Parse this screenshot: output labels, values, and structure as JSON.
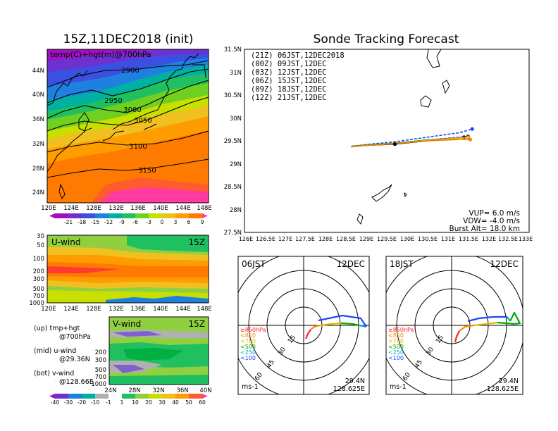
{
  "map_panel": {
    "title": "15Z,11DEC2018 (init)",
    "label": "temp(C)+hgt(m)@700hPa",
    "lat_ticks": [
      "44N",
      "40N",
      "36N",
      "32N",
      "28N",
      "24N"
    ],
    "lon_ticks": [
      "120E",
      "124E",
      "128E",
      "132E",
      "136E",
      "140E",
      "144E",
      "148E"
    ],
    "contour_labels": [
      "2900",
      "2950",
      "3000",
      "3050",
      "3100",
      "3150"
    ],
    "colorbar_labels": [
      "-21",
      "-18",
      "-15",
      "-12",
      "-9",
      "-6",
      "-3",
      "0",
      "3",
      "6",
      "9"
    ]
  },
  "uwind_panel": {
    "title": "U-wind",
    "time": "15Z",
    "p_ticks": [
      "30",
      "50",
      "100",
      "200",
      "300",
      "500",
      "700",
      "1000"
    ],
    "lon_ticks": [
      "120E",
      "124E",
      "128E",
      "132E",
      "136E",
      "140E",
      "144E",
      "148E"
    ]
  },
  "vwind_panel": {
    "title": "V-wind",
    "time": "15Z",
    "p_ticks": [
      "200",
      "300",
      "500",
      "700",
      "1000"
    ],
    "lat_ticks": [
      "24N",
      "28N",
      "32N",
      "36N",
      "40N"
    ]
  },
  "legend_text": {
    "up1": "(up) tmp+hgt",
    "up2": "@700hPa",
    "mid1": "(mid) u-wind",
    "mid2": "@29.36N",
    "bot1": "(bot) v-wind",
    "bot2": "@128.66E"
  },
  "wind_colorbar_labels": [
    "-40",
    "-30",
    "-20",
    "-10",
    "-1",
    "1",
    "10",
    "20",
    "30",
    "40",
    "50",
    "60"
  ],
  "track_panel": {
    "title": "Sonde Tracking Forecast",
    "legend": [
      {
        "label": "(21Z) 06JST,12DEC2018",
        "color": "#000000"
      },
      {
        "label": "(00Z) 09JST,12DEC",
        "color": "#9900cc"
      },
      {
        "label": "(03Z) 12JST,12DEC",
        "color": "#2244ff"
      },
      {
        "label": "(06Z) 15JST,12DEC",
        "color": "#00aa00"
      },
      {
        "label": "(09Z) 18JST,12DEC",
        "color": "#e6b800"
      },
      {
        "label": "(12Z) 21JST,12DEC",
        "color": "#ff7700"
      }
    ],
    "lat_ticks": [
      "31.5N",
      "31N",
      "30.5N",
      "30N",
      "29.5N",
      "29N",
      "28.5N",
      "28N",
      "27.5N"
    ],
    "lon_ticks": [
      "126E",
      "126.5E",
      "127E",
      "127.5E",
      "128E",
      "128.5E",
      "129E",
      "129.5E",
      "130E",
      "130.5E",
      "131E",
      "131.5E",
      "132E",
      "132.5E",
      "133E"
    ],
    "vup": "VUP= 6.0 m/s",
    "vdw": "VDW= -4.0 m/s",
    "burst": "Burst Alt= 18.0 km"
  },
  "hodo_left": {
    "time": "06JST",
    "date": "12DEC",
    "lat": "29.4N",
    "lon": "128.625E",
    "unit": "ms-1",
    "rings": [
      "15",
      "30",
      "45",
      "60"
    ]
  },
  "hodo_right": {
    "time": "18JST",
    "date": "12DEC",
    "lat": "29.4N",
    "lon": "128.625E",
    "unit": "ms-1",
    "rings": [
      "15",
      "30",
      "45",
      "60"
    ]
  },
  "hodo_legend": [
    {
      "label": "≥850hPa",
      "color": "#ff2222"
    },
    {
      "label": "<850",
      "color": "#ff8800"
    },
    {
      "label": "<700",
      "color": "#e6b800"
    },
    {
      "label": "<500",
      "color": "#00aa00"
    },
    {
      "label": "<250",
      "color": "#00aacc"
    },
    {
      "label": "<100",
      "color": "#2244ff"
    }
  ],
  "chart_data": [
    {
      "type": "heatmap",
      "title": "15Z,11DEC2018 (init)",
      "annotation": "temp(C)+hgt(m)@700hPa",
      "x_range": [
        120,
        149
      ],
      "y_range": [
        22,
        47
      ],
      "contours_m": [
        2900,
        2950,
        3000,
        3050,
        3100,
        3150
      ],
      "colorbar": [
        -21,
        -18,
        -15,
        -12,
        -9,
        -6,
        -3,
        0,
        3,
        6,
        9
      ]
    },
    {
      "type": "heatmap",
      "title": "U-wind",
      "x_range": [
        120,
        149
      ],
      "y_ticks_hPa": [
        30,
        50,
        100,
        200,
        300,
        500,
        700,
        1000
      ]
    },
    {
      "type": "heatmap",
      "title": "V-wind",
      "x_range": [
        24,
        40
      ],
      "y_ticks_hPa": [
        200,
        300,
        500,
        700,
        1000
      ]
    },
    {
      "type": "line",
      "title": "Sonde Tracking Forecast",
      "xlim": [
        126,
        133
      ],
      "ylim": [
        27.5,
        31.5
      ],
      "series": [
        {
          "name": "(21Z) 06JST,12DEC2018",
          "color": "#000000",
          "x": [
            128.625,
            129.0,
            129.7,
            130.5,
            131.2,
            131.4
          ],
          "y": [
            29.38,
            29.4,
            29.43,
            29.5,
            29.55,
            29.58
          ]
        },
        {
          "name": "(00Z) 09JST,12DEC",
          "color": "#9900cc",
          "x": [
            128.625,
            129.0,
            129.7,
            130.5,
            131.3,
            131.5
          ],
          "y": [
            29.37,
            29.4,
            29.44,
            29.52,
            29.58,
            29.6
          ]
        },
        {
          "name": "(03Z) 12JST,12DEC",
          "color": "#2244ff",
          "x": [
            128.625,
            129.0,
            129.7,
            130.5,
            131.3,
            131.6
          ],
          "y": [
            29.38,
            29.42,
            29.48,
            29.58,
            29.68,
            29.76
          ]
        },
        {
          "name": "(06Z) 15JST,12DEC",
          "color": "#00aa00",
          "x": [
            128.625,
            129.0,
            129.7,
            130.5,
            131.2,
            131.5
          ],
          "y": [
            29.38,
            29.41,
            29.45,
            29.52,
            29.56,
            29.58
          ]
        },
        {
          "name": "(09Z) 18JST,12DEC",
          "color": "#e6b800",
          "x": [
            128.625,
            129.0,
            129.7,
            130.5,
            131.3,
            131.5
          ],
          "y": [
            29.37,
            29.4,
            29.44,
            29.51,
            29.56,
            29.57
          ]
        },
        {
          "name": "(12Z) 21JST,12DEC",
          "color": "#ff7700",
          "x": [
            128.625,
            129.0,
            129.7,
            130.5,
            131.3,
            131.55
          ],
          "y": [
            29.37,
            29.4,
            29.44,
            29.5,
            29.53,
            29.53
          ]
        }
      ]
    }
  ]
}
